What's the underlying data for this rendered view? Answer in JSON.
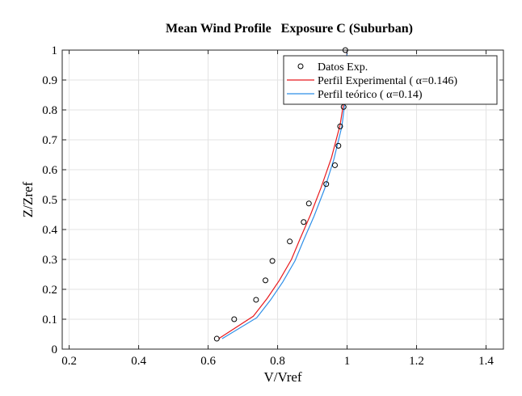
{
  "chart_data": {
    "type": "line",
    "title": "Mean Wind Profile   Exposure C (Suburban)",
    "xlabel": "V/Vref",
    "ylabel": "Z/Zref",
    "xlim": [
      0.18,
      1.45
    ],
    "ylim": [
      0,
      1
    ],
    "x_ticks": [
      "0.2",
      "0.4",
      "0.6",
      "0.8",
      "1",
      "1.2",
      "1.4"
    ],
    "x_tick_values": [
      0.2,
      0.4,
      0.6,
      0.8,
      1.0,
      1.2,
      1.4
    ],
    "y_ticks": [
      "0",
      "0.1",
      "0.2",
      "0.3",
      "0.4",
      "0.5",
      "0.6",
      "0.7",
      "0.8",
      "0.9",
      "1"
    ],
    "y_tick_values": [
      0,
      0.1,
      0.2,
      0.3,
      0.4,
      0.5,
      0.6,
      0.7,
      0.8,
      0.9,
      1.0
    ],
    "grid": true,
    "legend_position": "top-right",
    "series": [
      {
        "name": "Datos Exp.",
        "kind": "scatter",
        "marker": "circle-open",
        "color": "#000000",
        "x": [
          0.625,
          0.675,
          0.738,
          0.765,
          0.785,
          0.835,
          0.875,
          0.89,
          0.94,
          0.965,
          0.975,
          0.98,
          0.99,
          0.995
        ],
        "y": [
          0.035,
          0.1,
          0.165,
          0.23,
          0.295,
          0.36,
          0.425,
          0.487,
          0.552,
          0.615,
          0.68,
          0.745,
          0.81,
          1.0
        ]
      },
      {
        "name": "Perfil Experimental ( α=0.146)",
        "kind": "line",
        "color": "#e8191d",
        "x": [
          0.63,
          0.73,
          0.77,
          0.805,
          0.84,
          0.865,
          0.895,
          0.925,
          0.955,
          0.98,
          0.995,
          1.0
        ],
        "y": [
          0.035,
          0.11,
          0.17,
          0.23,
          0.3,
          0.37,
          0.45,
          0.54,
          0.64,
          0.75,
          0.86,
          1.0
        ]
      },
      {
        "name": "Perfil teórico ( α=0.14)",
        "kind": "line",
        "color": "#2e8fe8",
        "x": [
          0.64,
          0.74,
          0.78,
          0.815,
          0.85,
          0.875,
          0.905,
          0.935,
          0.962,
          0.985,
          0.997,
          1.0
        ],
        "y": [
          0.035,
          0.105,
          0.165,
          0.225,
          0.295,
          0.365,
          0.445,
          0.535,
          0.635,
          0.745,
          0.855,
          1.0
        ]
      }
    ]
  }
}
